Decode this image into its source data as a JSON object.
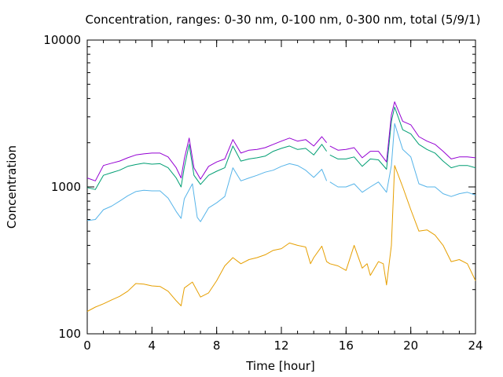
{
  "chart_data": {
    "type": "line",
    "title": "Concentration, ranges: 0-30 nm, 0-100 nm, 0-300 nm, total (5/9/1)",
    "xlabel": "Time [hour]",
    "ylabel": "Concentration",
    "xlim": [
      0,
      24
    ],
    "ylim": [
      100,
      10000
    ],
    "yscale": "log",
    "grid": false,
    "legend": "none",
    "xticks": [
      0,
      4,
      8,
      12,
      16,
      20,
      24
    ],
    "xtick_labels": [
      "0",
      "4",
      "8",
      "12",
      "16",
      "20",
      "24"
    ],
    "yticks": [
      100,
      1000,
      10000
    ],
    "ytick_labels": [
      "100",
      "1000",
      "10000"
    ],
    "series": [
      {
        "color": "#e69f00",
        "points": [
          [
            0,
            142
          ],
          [
            0.5,
            152
          ],
          [
            1,
            160
          ],
          [
            1.5,
            170
          ],
          [
            2,
            180
          ],
          [
            2.5,
            195
          ],
          [
            3,
            220
          ],
          [
            3.5,
            218
          ],
          [
            4,
            212
          ],
          [
            4.5,
            210
          ],
          [
            5,
            195
          ],
          [
            5.5,
            168
          ],
          [
            5.8,
            155
          ],
          [
            6,
            205
          ],
          [
            6.5,
            225
          ],
          [
            7,
            178
          ],
          [
            7.5,
            190
          ],
          [
            8,
            230
          ],
          [
            8.5,
            290
          ],
          [
            9,
            330
          ],
          [
            9.5,
            300
          ],
          [
            10,
            320
          ],
          [
            10.5,
            330
          ],
          [
            11,
            345
          ],
          [
            11.5,
            370
          ],
          [
            12,
            380
          ],
          [
            12.5,
            415
          ],
          [
            13,
            400
          ],
          [
            13.5,
            390
          ],
          [
            13.8,
            300
          ],
          [
            14,
            330
          ],
          [
            14.5,
            395
          ],
          [
            14.8,
            310
          ],
          [
            15,
            300
          ],
          [
            15.5,
            290
          ],
          [
            16,
            270
          ],
          [
            16.5,
            400
          ],
          [
            17,
            280
          ],
          [
            17.3,
            300
          ],
          [
            17.5,
            250
          ],
          [
            18,
            310
          ],
          [
            18.3,
            300
          ],
          [
            18.5,
            215
          ],
          [
            18.8,
            400
          ],
          [
            19,
            1400
          ],
          [
            19.5,
            1000
          ],
          [
            20,
            700
          ],
          [
            20.5,
            500
          ],
          [
            21,
            510
          ],
          [
            21.5,
            470
          ],
          [
            22,
            400
          ],
          [
            22.5,
            310
          ],
          [
            23,
            320
          ],
          [
            23.5,
            300
          ],
          [
            24,
            230
          ]
        ]
      },
      {
        "color": "#56b4e9",
        "points": [
          [
            0,
            590
          ],
          [
            0.5,
            600
          ],
          [
            1,
            700
          ],
          [
            1.5,
            740
          ],
          [
            2,
            800
          ],
          [
            2.5,
            870
          ],
          [
            3,
            930
          ],
          [
            3.5,
            950
          ],
          [
            4,
            940
          ],
          [
            4.5,
            940
          ],
          [
            5,
            840
          ],
          [
            5.5,
            680
          ],
          [
            5.8,
            610
          ],
          [
            6,
            830
          ],
          [
            6.5,
            1050
          ],
          [
            6.8,
            620
          ],
          [
            7,
            580
          ],
          [
            7.5,
            720
          ],
          [
            8,
            780
          ],
          [
            8.5,
            860
          ],
          [
            9,
            1350
          ],
          [
            9.5,
            1100
          ],
          [
            10,
            1150
          ],
          [
            10.5,
            1200
          ],
          [
            11,
            1260
          ],
          [
            11.5,
            1300
          ],
          [
            12,
            1380
          ],
          [
            12.5,
            1440
          ],
          [
            13,
            1400
          ],
          [
            13.5,
            1300
          ],
          [
            14,
            1160
          ],
          [
            14.5,
            1320
          ],
          [
            14.8,
            1100
          ]
        ]
      },
      {
        "color": "#56b4e9",
        "points": [
          [
            15,
            1080
          ],
          [
            15.5,
            1000
          ],
          [
            16,
            1000
          ],
          [
            16.5,
            1050
          ],
          [
            17,
            920
          ],
          [
            17.5,
            1000
          ],
          [
            18,
            1080
          ],
          [
            18.5,
            920
          ],
          [
            18.8,
            1400
          ],
          [
            19,
            2700
          ],
          [
            19.5,
            1800
          ],
          [
            20,
            1600
          ],
          [
            20.5,
            1050
          ],
          [
            21,
            1000
          ],
          [
            21.5,
            1000
          ],
          [
            22,
            900
          ],
          [
            22.5,
            860
          ],
          [
            23,
            900
          ],
          [
            23.5,
            920
          ],
          [
            24,
            880
          ]
        ]
      },
      {
        "color": "#009e73",
        "points": [
          [
            0,
            990
          ],
          [
            0.5,
            960
          ],
          [
            1,
            1200
          ],
          [
            1.5,
            1250
          ],
          [
            2,
            1300
          ],
          [
            2.5,
            1380
          ],
          [
            3,
            1420
          ],
          [
            3.5,
            1450
          ],
          [
            4,
            1430
          ],
          [
            4.5,
            1440
          ],
          [
            5,
            1350
          ],
          [
            5.5,
            1150
          ],
          [
            5.8,
            1000
          ],
          [
            6,
            1360
          ],
          [
            6.3,
            1950
          ],
          [
            6.6,
            1200
          ],
          [
            7,
            1040
          ],
          [
            7.5,
            1200
          ],
          [
            8,
            1280
          ],
          [
            8.5,
            1350
          ],
          [
            9,
            1900
          ],
          [
            9.5,
            1500
          ],
          [
            10,
            1550
          ],
          [
            10.5,
            1580
          ],
          [
            11,
            1620
          ],
          [
            11.5,
            1750
          ],
          [
            12,
            1830
          ],
          [
            12.5,
            1900
          ],
          [
            13,
            1800
          ],
          [
            13.5,
            1830
          ],
          [
            14,
            1650
          ],
          [
            14.5,
            1950
          ],
          [
            14.8,
            1750
          ]
        ]
      },
      {
        "color": "#009e73",
        "points": [
          [
            15,
            1650
          ],
          [
            15.5,
            1550
          ],
          [
            16,
            1550
          ],
          [
            16.5,
            1600
          ],
          [
            17,
            1380
          ],
          [
            17.5,
            1550
          ],
          [
            18,
            1530
          ],
          [
            18.5,
            1320
          ],
          [
            18.8,
            2800
          ],
          [
            19,
            3500
          ],
          [
            19.5,
            2450
          ],
          [
            20,
            2300
          ],
          [
            20.5,
            1950
          ],
          [
            21,
            1800
          ],
          [
            21.5,
            1700
          ],
          [
            22,
            1500
          ],
          [
            22.5,
            1350
          ],
          [
            23,
            1400
          ],
          [
            23.5,
            1400
          ],
          [
            24,
            1350
          ]
        ]
      },
      {
        "color": "#9400d3",
        "points": [
          [
            0,
            1150
          ],
          [
            0.5,
            1100
          ],
          [
            1,
            1400
          ],
          [
            1.5,
            1450
          ],
          [
            2,
            1500
          ],
          [
            2.5,
            1580
          ],
          [
            3,
            1650
          ],
          [
            3.5,
            1680
          ],
          [
            4,
            1700
          ],
          [
            4.5,
            1700
          ],
          [
            5,
            1600
          ],
          [
            5.5,
            1350
          ],
          [
            5.8,
            1150
          ],
          [
            6,
            1550
          ],
          [
            6.3,
            2150
          ],
          [
            6.6,
            1350
          ],
          [
            7,
            1130
          ],
          [
            7.5,
            1380
          ],
          [
            8,
            1480
          ],
          [
            8.5,
            1550
          ],
          [
            9,
            2100
          ],
          [
            9.5,
            1700
          ],
          [
            10,
            1780
          ],
          [
            10.5,
            1800
          ],
          [
            11,
            1850
          ],
          [
            11.5,
            1950
          ],
          [
            12,
            2050
          ],
          [
            12.5,
            2150
          ],
          [
            13,
            2050
          ],
          [
            13.5,
            2100
          ],
          [
            14,
            1900
          ],
          [
            14.5,
            2200
          ],
          [
            14.8,
            2000
          ]
        ]
      },
      {
        "color": "#9400d3",
        "points": [
          [
            15,
            1900
          ],
          [
            15.5,
            1780
          ],
          [
            16,
            1800
          ],
          [
            16.5,
            1850
          ],
          [
            17,
            1580
          ],
          [
            17.5,
            1750
          ],
          [
            18,
            1750
          ],
          [
            18.5,
            1480
          ],
          [
            18.8,
            3100
          ],
          [
            19,
            3800
          ],
          [
            19.5,
            2800
          ],
          [
            20,
            2650
          ],
          [
            20.5,
            2200
          ],
          [
            21,
            2050
          ],
          [
            21.5,
            1950
          ],
          [
            22,
            1750
          ],
          [
            22.5,
            1550
          ],
          [
            23,
            1600
          ],
          [
            23.5,
            1600
          ],
          [
            24,
            1580
          ]
        ]
      }
    ]
  }
}
